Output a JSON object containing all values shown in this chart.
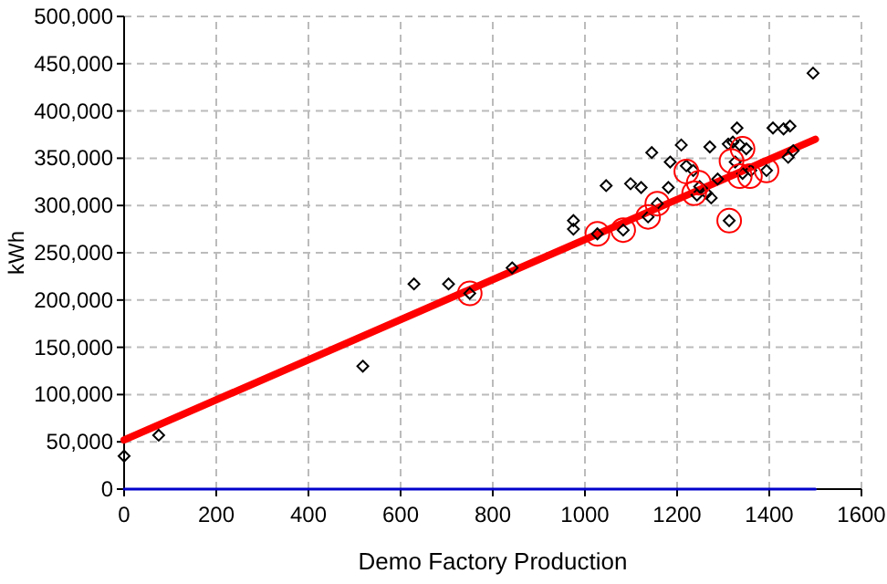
{
  "chart_data": {
    "type": "scatter",
    "xlabel": "Demo Factory Production",
    "ylabel": "kWh",
    "xlim": [
      0,
      1600
    ],
    "xticks": [
      0,
      200,
      400,
      600,
      800,
      1000,
      1200,
      1400,
      1600
    ],
    "ylim": [
      0,
      500000
    ],
    "yticks": [
      {
        "value": 0,
        "label": "0"
      },
      {
        "value": 50000,
        "label": "50,000"
      },
      {
        "value": 100000,
        "label": "100,000"
      },
      {
        "value": 150000,
        "label": "150,000"
      },
      {
        "value": 200000,
        "label": "200,000"
      },
      {
        "value": 250000,
        "label": "250,000"
      },
      {
        "value": 300000,
        "label": "300,000"
      },
      {
        "value": 350000,
        "label": "350,000"
      },
      {
        "value": 400000,
        "label": "400,000"
      },
      {
        "value": 450000,
        "label": "450,000"
      },
      {
        "value": 500000,
        "label": "500,000"
      }
    ],
    "grid": true,
    "series": [
      {
        "type": "line",
        "color": "#0000cc",
        "marker": "none",
        "x": [
          0,
          1500
        ],
        "values": [
          0,
          0
        ]
      },
      {
        "type": "line",
        "color": "#ff0000",
        "marker": "none",
        "x": [
          0,
          1500
        ],
        "values": [
          52000,
          370000
        ]
      },
      {
        "color": "#000000",
        "marker": "diamond",
        "x": [
          0,
          75,
          518,
          629,
          704,
          750,
          842,
          975,
          975,
          1027,
          1046,
          1083,
          1099,
          1122,
          1145,
          1137,
          1157,
          1181,
          1185,
          1209,
          1220,
          1235,
          1243,
          1249,
          1264,
          1271,
          1274,
          1288,
          1311,
          1321,
          1330,
          1313,
          1326,
          1336,
          1342,
          1350,
          1360,
          1394,
          1408,
          1431,
          1445,
          1441,
          1452,
          1495
        ],
        "values": [
          35000,
          57000,
          130000,
          217000,
          217000,
          207000,
          234000,
          284000,
          275000,
          270000,
          321000,
          274000,
          323000,
          319000,
          356000,
          288000,
          302000,
          319000,
          346000,
          364000,
          342000,
          337000,
          311000,
          320000,
          313000,
          362000,
          308000,
          328000,
          365000,
          367000,
          382000,
          284000,
          346000,
          364000,
          334000,
          360000,
          337000,
          337000,
          382000,
          381000,
          384000,
          351000,
          358000,
          440000
        ]
      },
      {
        "color": "#ff0000",
        "marker": "circle",
        "x": [
          750,
          1027,
          1083,
          1137,
          1157,
          1220,
          1237,
          1247,
          1313,
          1318,
          1342,
          1336,
          1358,
          1394
        ],
        "values": [
          207000,
          270000,
          274000,
          288000,
          302000,
          336000,
          313000,
          324000,
          284000,
          347000,
          360000,
          331000,
          331000,
          337000
        ]
      }
    ]
  }
}
